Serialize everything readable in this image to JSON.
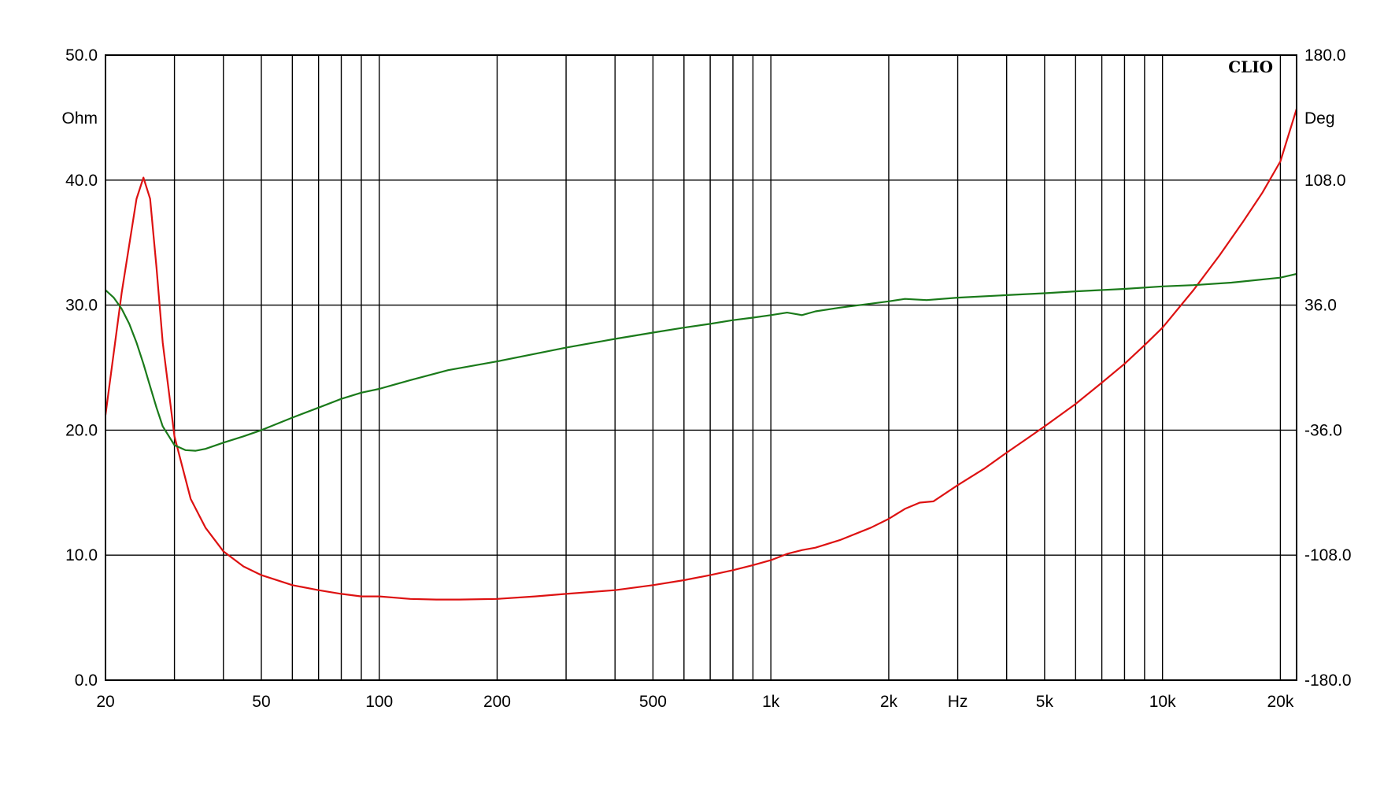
{
  "chart_data": {
    "type": "line",
    "brand": "CLIO",
    "x_unit_label": "Hz",
    "y_left_label": "Ohm",
    "y_right_label": "Deg",
    "x_scale": "log",
    "xlim": [
      20,
      22000
    ],
    "ylim_left": [
      0,
      50
    ],
    "ylim_right": [
      -180,
      180
    ],
    "grid": true,
    "x_gridlines": [
      30,
      40,
      50,
      60,
      70,
      80,
      90,
      100,
      200,
      300,
      400,
      500,
      600,
      700,
      800,
      900,
      1000,
      2000,
      3000,
      4000,
      5000,
      6000,
      7000,
      8000,
      9000,
      10000,
      20000
    ],
    "x_tick_labels": [
      {
        "value": 20,
        "label": "20"
      },
      {
        "value": 50,
        "label": "50"
      },
      {
        "value": 100,
        "label": "100"
      },
      {
        "value": 200,
        "label": "200"
      },
      {
        "value": 500,
        "label": "500"
      },
      {
        "value": 1000,
        "label": "1k"
      },
      {
        "value": 2000,
        "label": "2k"
      },
      {
        "value": 5000,
        "label": "5k"
      },
      {
        "value": 10000,
        "label": "10k"
      },
      {
        "value": 20000,
        "label": "20k"
      }
    ],
    "y_left_ticks": [
      {
        "value": 0,
        "label": "0.0"
      },
      {
        "value": 10,
        "label": "10.0"
      },
      {
        "value": 20,
        "label": "20.0"
      },
      {
        "value": 30,
        "label": "30.0"
      },
      {
        "value": 40,
        "label": "40.0"
      },
      {
        "value": 50,
        "label": "50.0"
      }
    ],
    "y_right_ticks": [
      {
        "value": -180,
        "label": "-180.0"
      },
      {
        "value": -108,
        "label": "-108.0"
      },
      {
        "value": -36,
        "label": "-36.0"
      },
      {
        "value": 36,
        "label": "36.0"
      },
      {
        "value": 108,
        "label": "108.0"
      },
      {
        "value": 180,
        "label": "180.0"
      }
    ],
    "series": [
      {
        "axis": "left",
        "color": "#dd1111",
        "x": [
          20,
          22,
          24,
          25,
          26,
          27,
          28,
          30,
          33,
          36,
          40,
          45,
          50,
          60,
          70,
          80,
          90,
          100,
          120,
          140,
          160,
          200,
          250,
          300,
          400,
          500,
          600,
          700,
          800,
          900,
          1000,
          1100,
          1200,
          1300,
          1500,
          1800,
          2000,
          2200,
          2400,
          2600,
          3000,
          3500,
          4000,
          4500,
          5000,
          6000,
          7000,
          8000,
          9000,
          10000,
          12000,
          14000,
          16000,
          18000,
          20000,
          22000
        ],
        "y": [
          21.2,
          31,
          38.5,
          40.2,
          38.5,
          33,
          27,
          19.5,
          14.5,
          12.2,
          10.3,
          9.1,
          8.4,
          7.6,
          7.2,
          6.9,
          6.7,
          6.7,
          6.5,
          6.45,
          6.45,
          6.5,
          6.7,
          6.9,
          7.2,
          7.6,
          8.0,
          8.4,
          8.8,
          9.2,
          9.6,
          10.1,
          10.4,
          10.6,
          11.2,
          12.2,
          12.9,
          13.7,
          14.2,
          14.3,
          15.6,
          16.9,
          18.2,
          19.3,
          20.3,
          22.1,
          23.8,
          25.3,
          26.8,
          28.2,
          31.2,
          34,
          36.6,
          39,
          41.5,
          45.7
        ]
      },
      {
        "axis": "left",
        "color": "#1a7a1a",
        "x": [
          20,
          21,
          22,
          23,
          24,
          25,
          26,
          27,
          28,
          30,
          32,
          34,
          36,
          40,
          45,
          50,
          60,
          70,
          80,
          90,
          100,
          120,
          150,
          200,
          300,
          400,
          500,
          600,
          700,
          800,
          900,
          1000,
          1100,
          1150,
          1200,
          1300,
          1500,
          2000,
          2200,
          2500,
          3000,
          4000,
          5000,
          6000,
          8000,
          10000,
          12000,
          15000,
          20000,
          22000
        ],
        "y": [
          31.2,
          30.6,
          29.7,
          28.5,
          27,
          25.3,
          23.5,
          21.8,
          20.3,
          18.8,
          18.4,
          18.35,
          18.5,
          19,
          19.5,
          20,
          21,
          21.8,
          22.5,
          23,
          23.3,
          24,
          24.8,
          25.5,
          26.6,
          27.3,
          27.8,
          28.2,
          28.5,
          28.8,
          29.0,
          29.2,
          29.4,
          29.3,
          29.2,
          29.5,
          29.8,
          30.3,
          30.5,
          30.4,
          30.6,
          30.8,
          30.95,
          31.1,
          31.3,
          31.5,
          31.6,
          31.8,
          32.2,
          32.5
        ]
      }
    ]
  }
}
